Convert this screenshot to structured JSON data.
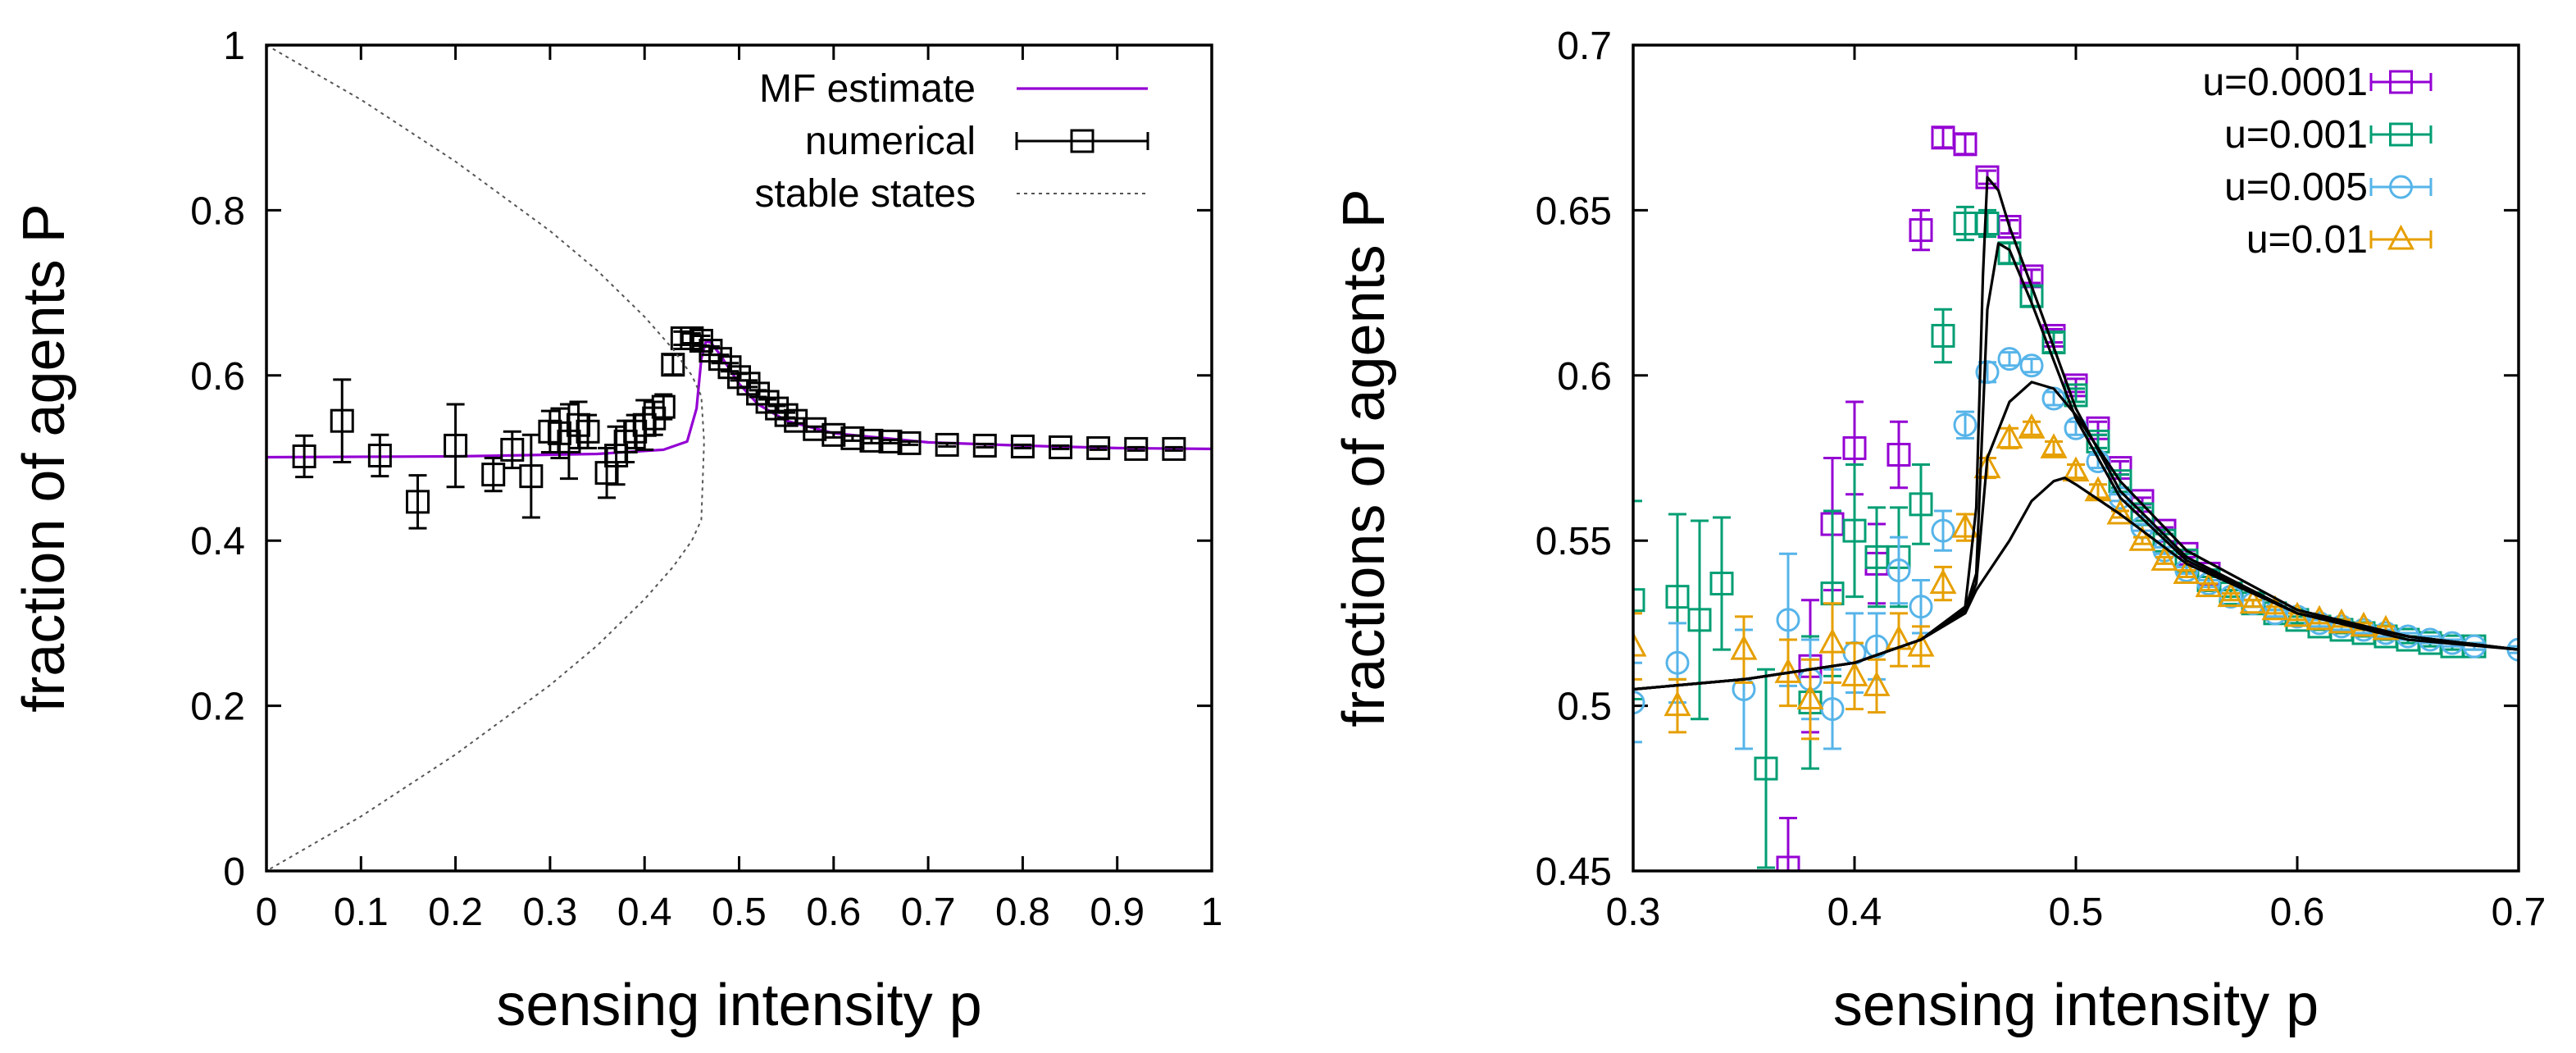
{
  "chart_data": [
    {
      "type": "line",
      "panel": "left",
      "xlabel": "sensing intensity p",
      "ylabel": "fraction of agents P",
      "xlim": [
        0,
        1
      ],
      "ylim": [
        0,
        1
      ],
      "x_ticks": [
        "0",
        "0.1",
        "0.2",
        "0.3",
        "0.4",
        "0.5",
        "0.6",
        "0.7",
        "0.8",
        "0.9",
        "1"
      ],
      "y_ticks": [
        "0",
        "0.2",
        "0.4",
        "0.6",
        "0.8",
        "1"
      ],
      "legend_position": "top-right",
      "series": [
        {
          "name": "MF estimate",
          "style": "line",
          "color": "#9400d3",
          "x": [
            0,
            0.2,
            0.35,
            0.42,
            0.445,
            0.455,
            0.46,
            0.465,
            0.47,
            0.48,
            0.5,
            0.52,
            0.55,
            0.6,
            0.7,
            0.8,
            0.9,
            1.0
          ],
          "y": [
            0.501,
            0.502,
            0.505,
            0.51,
            0.52,
            0.56,
            0.62,
            0.641,
            0.64,
            0.625,
            0.59,
            0.565,
            0.545,
            0.53,
            0.519,
            0.515,
            0.512,
            0.511
          ]
        },
        {
          "name": "numerical",
          "style": "points-errorbars",
          "marker": "square",
          "color": "#000000",
          "x": [
            0.04,
            0.08,
            0.12,
            0.16,
            0.2,
            0.24,
            0.26,
            0.28,
            0.3,
            0.31,
            0.32,
            0.33,
            0.34,
            0.36,
            0.37,
            0.38,
            0.39,
            0.4,
            0.41,
            0.42,
            0.43,
            0.44,
            0.45,
            0.46,
            0.47,
            0.48,
            0.49,
            0.5,
            0.51,
            0.52,
            0.53,
            0.54,
            0.55,
            0.56,
            0.58,
            0.6,
            0.62,
            0.64,
            0.66,
            0.68,
            0.72,
            0.76,
            0.8,
            0.84,
            0.88,
            0.92,
            0.96
          ],
          "y": [
            0.502,
            0.545,
            0.503,
            0.447,
            0.515,
            0.48,
            0.51,
            0.478,
            0.532,
            0.53,
            0.52,
            0.54,
            0.532,
            0.482,
            0.503,
            0.52,
            0.532,
            0.54,
            0.548,
            0.562,
            0.613,
            0.645,
            0.645,
            0.642,
            0.63,
            0.62,
            0.61,
            0.598,
            0.59,
            0.578,
            0.568,
            0.56,
            0.552,
            0.545,
            0.535,
            0.528,
            0.524,
            0.521,
            0.52,
            0.518,
            0.516,
            0.515,
            0.514,
            0.513,
            0.512,
            0.511,
            0.511
          ],
          "err": [
            0.025,
            0.05,
            0.025,
            0.032,
            0.05,
            0.02,
            0.022,
            0.05,
            0.025,
            0.03,
            0.045,
            0.028,
            0.02,
            0.03,
            0.035,
            0.025,
            0.02,
            0.03,
            0.02,
            0.015,
            0.012,
            0.008,
            0.006,
            0.006,
            0.005,
            0.005,
            0.005,
            0.004,
            0.004,
            0.004,
            0.003,
            0.003,
            0.003,
            0.003,
            0.003,
            0.003,
            0.003,
            0.003,
            0.002,
            0.002,
            0.002,
            0.002,
            0.002,
            0.002,
            0.002,
            0.002,
            0.002
          ]
        },
        {
          "name": "stable states",
          "style": "dotted-line",
          "color": "#555555",
          "x": [
            0,
            0.1,
            0.2,
            0.3,
            0.35,
            0.4,
            0.43,
            0.45,
            0.46,
            0.463,
            0.46,
            0.45,
            0.43,
            0.4,
            0.35,
            0.3,
            0.2,
            0.1,
            0
          ],
          "y": [
            1.0,
            0.934,
            0.859,
            0.775,
            0.727,
            0.671,
            0.632,
            0.6,
            0.575,
            0.52,
            0.425,
            0.4,
            0.368,
            0.329,
            0.273,
            0.225,
            0.141,
            0.066,
            0.0
          ]
        }
      ]
    },
    {
      "type": "line",
      "panel": "right",
      "xlabel": "sensing intensity p",
      "ylabel": "fractions of agents P",
      "xlim": [
        0.3,
        0.7
      ],
      "ylim": [
        0.45,
        0.7
      ],
      "x_ticks": [
        "0.3",
        "0.4",
        "0.5",
        "0.6",
        "0.7"
      ],
      "y_ticks": [
        "0.45",
        "0.5",
        "0.55",
        "0.6",
        "0.65",
        "0.7"
      ],
      "legend_position": "top-right",
      "series": [
        {
          "name": "u=0.0001",
          "marker": "square",
          "color": "#9400d3",
          "x": [
            0.37,
            0.38,
            0.39,
            0.4,
            0.41,
            0.42,
            0.43,
            0.44,
            0.45,
            0.46,
            0.47,
            0.48,
            0.49,
            0.5,
            0.51,
            0.52,
            0.53,
            0.54,
            0.55,
            0.56
          ],
          "y": [
            0.451,
            0.512,
            0.555,
            0.578,
            0.543,
            0.576,
            0.644,
            0.672,
            0.67,
            0.66,
            0.645,
            0.63,
            0.612,
            0.597,
            0.584,
            0.572,
            0.562,
            0.553,
            0.546,
            0.54
          ],
          "err": [
            0.015,
            0.02,
            0.02,
            0.014,
            0.012,
            0.01,
            0.006,
            0.003,
            0.003,
            0.002,
            0.002,
            0.002,
            0.002,
            0.002,
            0.002,
            0.002,
            0.001,
            0.001,
            0.001,
            0.001
          ]
        },
        {
          "name": "u=0.001",
          "marker": "square",
          "color": "#009e73",
          "x": [
            0.3,
            0.32,
            0.33,
            0.34,
            0.36,
            0.38,
            0.39,
            0.4,
            0.41,
            0.42,
            0.43,
            0.44,
            0.45,
            0.46,
            0.47,
            0.48,
            0.49,
            0.5,
            0.51,
            0.52,
            0.53,
            0.54,
            0.55,
            0.56,
            0.57,
            0.58,
            0.59,
            0.6,
            0.61,
            0.62,
            0.63,
            0.64,
            0.65,
            0.66,
            0.67,
            0.68
          ],
          "y": [
            0.532,
            0.533,
            0.526,
            0.537,
            0.481,
            0.501,
            0.534,
            0.553,
            0.545,
            0.545,
            0.561,
            0.612,
            0.646,
            0.646,
            0.637,
            0.624,
            0.61,
            0.594,
            0.58,
            0.568,
            0.558,
            0.55,
            0.544,
            0.538,
            0.534,
            0.531,
            0.528,
            0.526,
            0.524,
            0.523,
            0.522,
            0.521,
            0.52,
            0.519,
            0.518,
            0.518
          ],
          "err": [
            0.03,
            0.025,
            0.03,
            0.02,
            0.03,
            0.02,
            0.025,
            0.02,
            0.015,
            0.015,
            0.012,
            0.008,
            0.005,
            0.004,
            0.003,
            0.003,
            0.003,
            0.002,
            0.002,
            0.002,
            0.002,
            0.002,
            0.002,
            0.001,
            0.001,
            0.001,
            0.001,
            0.001,
            0.001,
            0.001,
            0.001,
            0.001,
            0.001,
            0.001,
            0.001,
            0.001
          ]
        },
        {
          "name": "u=0.005",
          "marker": "circle",
          "color": "#56b4e9",
          "x": [
            0.3,
            0.32,
            0.35,
            0.37,
            0.38,
            0.39,
            0.4,
            0.41,
            0.42,
            0.43,
            0.44,
            0.45,
            0.46,
            0.47,
            0.48,
            0.49,
            0.5,
            0.51,
            0.52,
            0.53,
            0.54,
            0.55,
            0.56,
            0.57,
            0.58,
            0.59,
            0.6,
            0.61,
            0.62,
            0.63,
            0.64,
            0.65,
            0.66,
            0.67,
            0.68,
            0.7
          ],
          "y": [
            0.501,
            0.513,
            0.505,
            0.526,
            0.508,
            0.499,
            0.516,
            0.518,
            0.541,
            0.53,
            0.553,
            0.585,
            0.601,
            0.605,
            0.603,
            0.593,
            0.584,
            0.574,
            0.563,
            0.554,
            0.547,
            0.541,
            0.537,
            0.533,
            0.531,
            0.528,
            0.527,
            0.525,
            0.524,
            0.523,
            0.522,
            0.521,
            0.52,
            0.519,
            0.518,
            0.517
          ],
          "err": [
            0.012,
            0.012,
            0.018,
            0.02,
            0.012,
            0.012,
            0.012,
            0.01,
            0.01,
            0.008,
            0.006,
            0.004,
            0.003,
            0.002,
            0.002,
            0.002,
            0.002,
            0.002,
            0.001,
            0.001,
            0.001,
            0.001,
            0.001,
            0.001,
            0.001,
            0.001,
            0.001,
            0.001,
            0.001,
            0.001,
            0.001,
            0.001,
            0.001,
            0.001,
            0.001,
            0.001
          ]
        },
        {
          "name": "u=0.01",
          "marker": "triangle",
          "color": "#e69f00",
          "x": [
            0.3,
            0.32,
            0.35,
            0.37,
            0.38,
            0.39,
            0.4,
            0.41,
            0.42,
            0.43,
            0.44,
            0.45,
            0.46,
            0.47,
            0.48,
            0.49,
            0.5,
            0.51,
            0.52,
            0.53,
            0.54,
            0.55,
            0.56,
            0.57,
            0.58,
            0.59,
            0.6,
            0.61,
            0.62,
            0.63,
            0.64
          ],
          "y": [
            0.518,
            0.5,
            0.517,
            0.51,
            0.502,
            0.519,
            0.509,
            0.506,
            0.52,
            0.518,
            0.537,
            0.554,
            0.572,
            0.581,
            0.584,
            0.578,
            0.571,
            0.565,
            0.558,
            0.55,
            0.544,
            0.54,
            0.536,
            0.533,
            0.531,
            0.529,
            0.527,
            0.526,
            0.525,
            0.524,
            0.523
          ],
          "err": [
            0.01,
            0.008,
            0.01,
            0.01,
            0.012,
            0.012,
            0.01,
            0.008,
            0.008,
            0.006,
            0.005,
            0.004,
            0.003,
            0.003,
            0.002,
            0.002,
            0.002,
            0.002,
            0.001,
            0.001,
            0.001,
            0.001,
            0.001,
            0.001,
            0.001,
            0.001,
            0.001,
            0.001,
            0.001,
            0.001,
            0.001
          ]
        },
        {
          "name": "MF u=0.0001",
          "style": "line",
          "color": "#000000",
          "in_legend": false,
          "x": [
            0.3,
            0.35,
            0.4,
            0.43,
            0.45,
            0.455,
            0.458,
            0.46,
            0.465,
            0.47,
            0.48,
            0.5,
            0.52,
            0.55,
            0.6,
            0.65,
            0.7
          ],
          "y": [
            0.505,
            0.508,
            0.513,
            0.52,
            0.53,
            0.56,
            0.63,
            0.66,
            0.656,
            0.645,
            0.627,
            0.59,
            0.565,
            0.545,
            0.528,
            0.521,
            0.517
          ]
        },
        {
          "name": "MF u=0.001",
          "style": "line",
          "color": "#000000",
          "in_legend": false,
          "x": [
            0.3,
            0.35,
            0.4,
            0.43,
            0.45,
            0.455,
            0.46,
            0.465,
            0.47,
            0.48,
            0.5,
            0.52,
            0.55,
            0.6,
            0.65,
            0.7
          ],
          "y": [
            0.505,
            0.508,
            0.513,
            0.52,
            0.529,
            0.54,
            0.62,
            0.64,
            0.638,
            0.622,
            0.587,
            0.563,
            0.544,
            0.528,
            0.521,
            0.517
          ]
        },
        {
          "name": "MF u=0.005",
          "style": "line",
          "color": "#000000",
          "in_legend": false,
          "x": [
            0.3,
            0.35,
            0.4,
            0.43,
            0.45,
            0.455,
            0.46,
            0.47,
            0.48,
            0.49,
            0.5,
            0.52,
            0.55,
            0.6,
            0.65,
            0.7
          ],
          "y": [
            0.505,
            0.508,
            0.513,
            0.52,
            0.529,
            0.537,
            0.575,
            0.592,
            0.598,
            0.596,
            0.588,
            0.568,
            0.547,
            0.529,
            0.521,
            0.517
          ]
        },
        {
          "name": "MF u=0.01",
          "style": "line",
          "color": "#000000",
          "in_legend": false,
          "x": [
            0.3,
            0.35,
            0.4,
            0.43,
            0.45,
            0.455,
            0.46,
            0.465,
            0.47,
            0.48,
            0.49,
            0.495,
            0.5,
            0.52,
            0.55,
            0.6,
            0.65,
            0.7
          ],
          "y": [
            0.505,
            0.508,
            0.513,
            0.52,
            0.528,
            0.535,
            0.54,
            0.545,
            0.55,
            0.562,
            0.568,
            0.569,
            0.567,
            0.558,
            0.543,
            0.528,
            0.52,
            0.517
          ]
        }
      ]
    }
  ]
}
